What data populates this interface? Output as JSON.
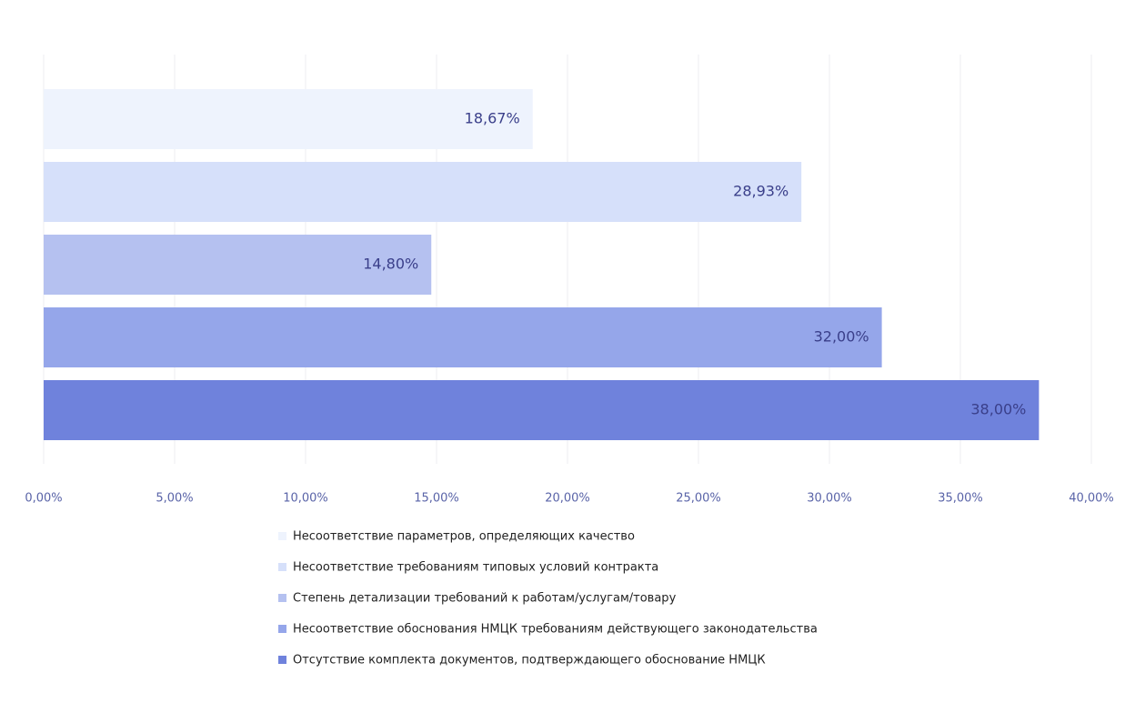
{
  "chart_data": {
    "type": "bar",
    "orientation": "horizontal",
    "series": [
      {
        "name": "Несоответствие параметров, определяющих качество",
        "color": "#eef3fd",
        "values": [
          18.67
        ],
        "value_labels": [
          "18,67%"
        ]
      },
      {
        "name": "Несоответствие требованиям типовых условий контракта",
        "color": "#d6e0fa",
        "values": [
          28.93
        ],
        "value_labels": [
          "28,93%"
        ]
      },
      {
        "name": "Степень детализации требований к работам/услугам/товару",
        "color": "#b5c1f0",
        "values": [
          14.8
        ],
        "value_labels": [
          "14,80%"
        ]
      },
      {
        "name": "Несоответствие обоснования НМЦК требованиям действующего законодательства",
        "color": "#95a6ea",
        "values": [
          32
        ],
        "value_labels": [
          "32,00%"
        ]
      },
      {
        "name": "Отсутствие комплекта документов, подтверждающего обоснование НМЦК",
        "color": "#6f82dc",
        "values": [
          38
        ],
        "value_labels": [
          "38,00%"
        ]
      }
    ],
    "xlim": [
      0,
      40
    ],
    "xticks": [
      {
        "value": 0,
        "label": "0,00%"
      },
      {
        "value": 5,
        "label": "5,00%"
      },
      {
        "value": 10,
        "label": "10,00%"
      },
      {
        "value": 15,
        "label": "15,00%"
      },
      {
        "value": 20,
        "label": "20,00%"
      },
      {
        "value": 25,
        "label": "25,00%"
      },
      {
        "value": 30,
        "label": "30,00%"
      },
      {
        "value": 35,
        "label": "35,00%"
      },
      {
        "value": 40,
        "label": "40,00%"
      }
    ],
    "grid": true,
    "legend": "bottom"
  }
}
